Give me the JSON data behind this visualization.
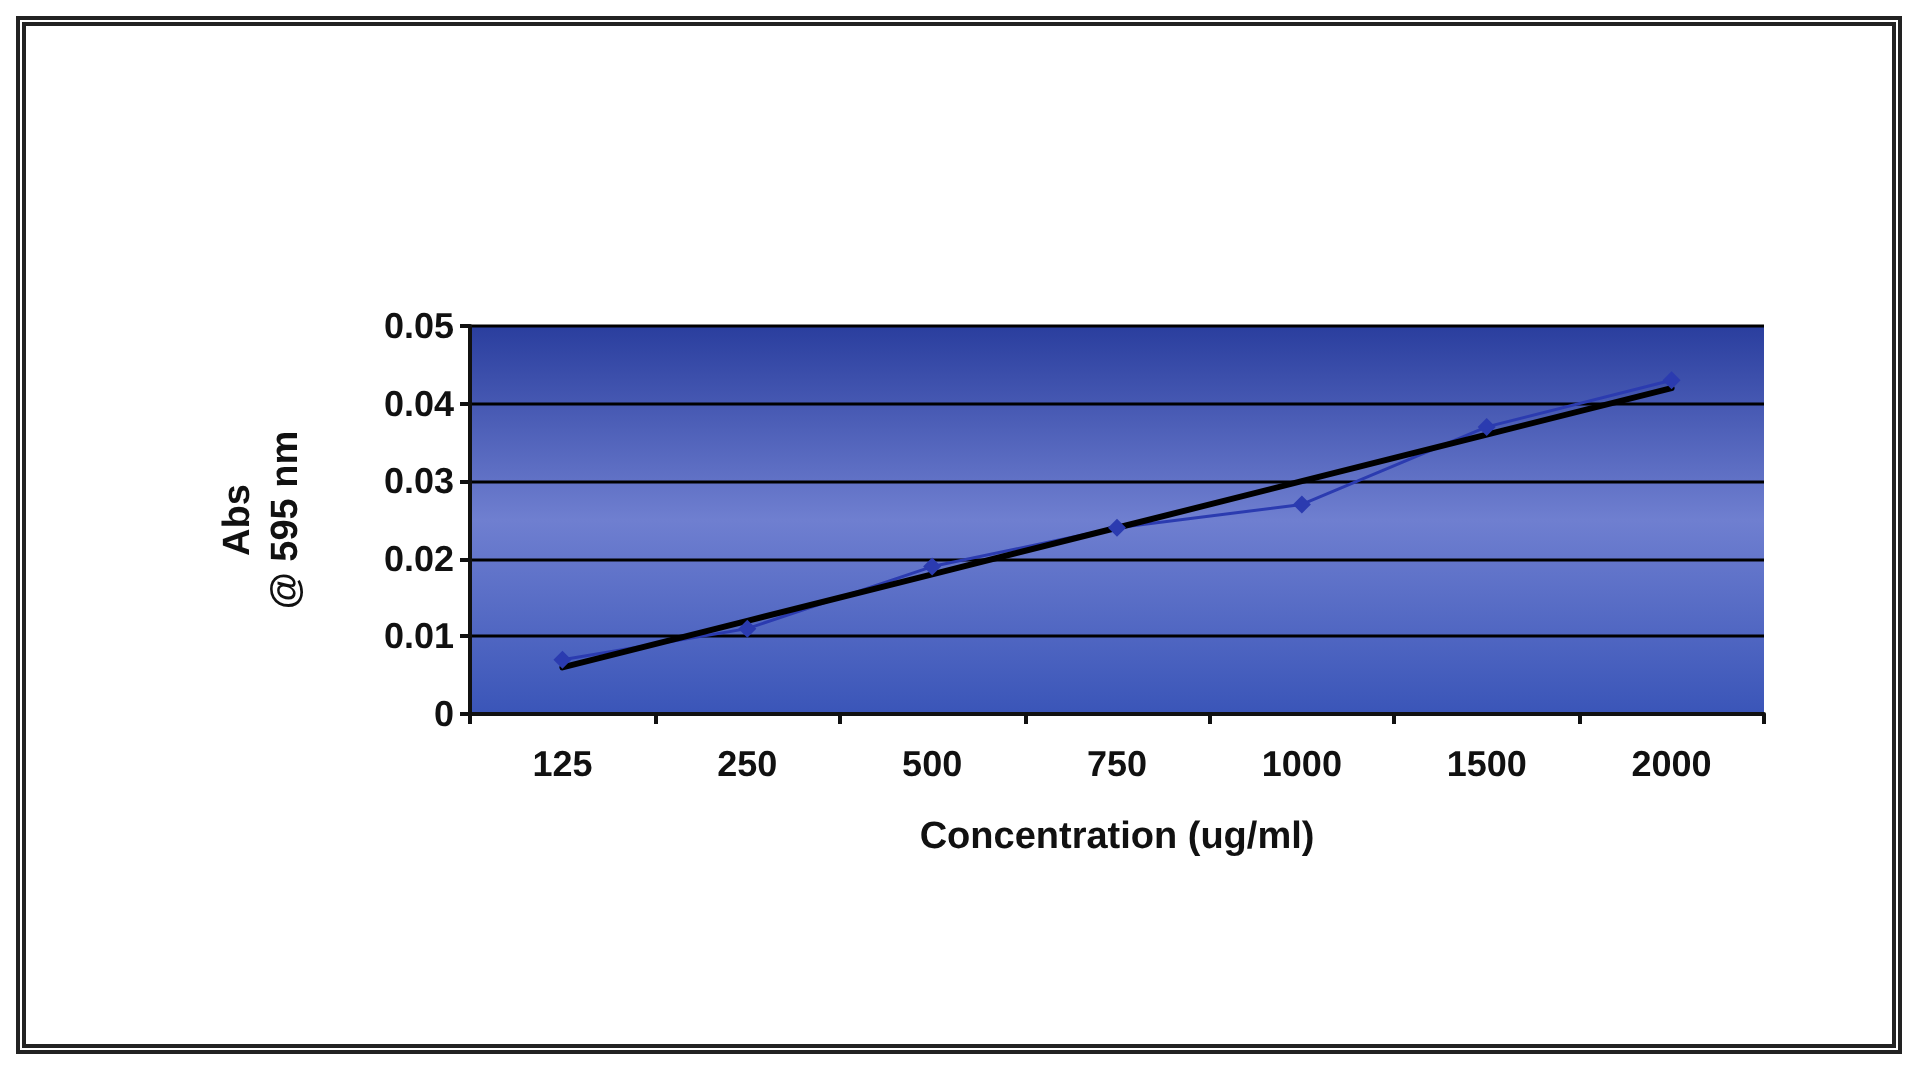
{
  "chart_data": {
    "type": "line",
    "xlabel": "Concentration (ug/ml)",
    "ylabel": "Abs\n@ 595 nm",
    "categories": [
      "125",
      "250",
      "500",
      "750",
      "1000",
      "1500",
      "2000"
    ],
    "series": [
      {
        "color": "#2b3bb0",
        "marker": "diamond",
        "values": [
          0.007,
          0.011,
          0.019,
          0.024,
          0.027,
          0.037,
          0.043
        ]
      },
      {
        "color": "#000000",
        "marker": "none",
        "values": [
          0.006,
          0.012,
          0.018,
          0.024,
          0.03,
          0.036,
          0.042
        ]
      }
    ],
    "ylim": [
      0,
      0.05
    ],
    "yticks": [
      0,
      0.01,
      0.02,
      0.03,
      0.04,
      0.05
    ],
    "grid": "y"
  }
}
